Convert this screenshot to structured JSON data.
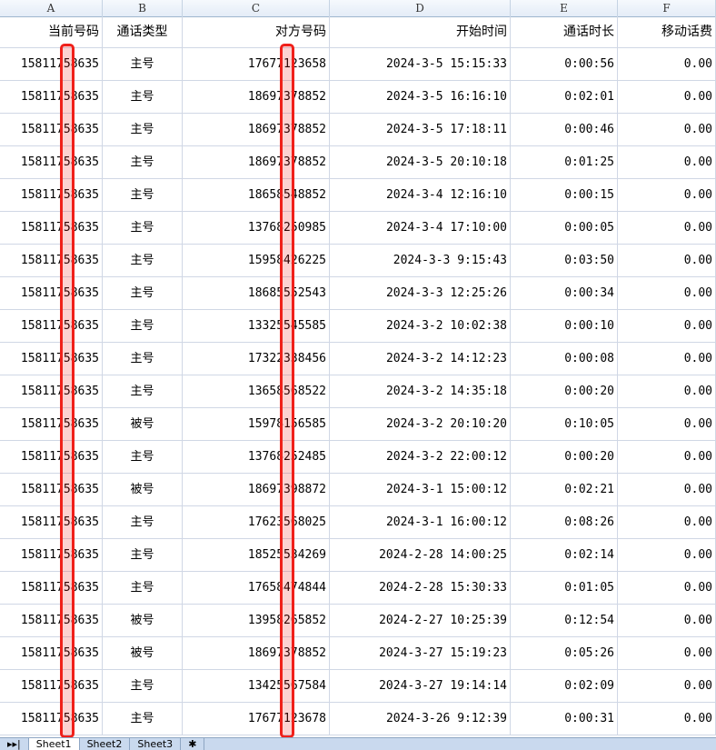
{
  "columns": [
    "A",
    "B",
    "C",
    "D",
    "E",
    "F"
  ],
  "headers": [
    "当前号码",
    "通话类型",
    "对方号码",
    "开始时间",
    "通话时长",
    "移动话费"
  ],
  "rows": [
    [
      "15811758635",
      "主号",
      "17677123658",
      "2024-3-5 15:15:33",
      "0:00:56",
      "0.00"
    ],
    [
      "15811758635",
      "主号",
      "18697378852",
      "2024-3-5 16:16:10",
      "0:02:01",
      "0.00"
    ],
    [
      "15811758635",
      "主号",
      "18697378852",
      "2024-3-5 17:18:11",
      "0:00:46",
      "0.00"
    ],
    [
      "15811758635",
      "主号",
      "18697378852",
      "2024-3-5 20:10:18",
      "0:01:25",
      "0.00"
    ],
    [
      "15811758635",
      "主号",
      "18658548852",
      "2024-3-4 12:16:10",
      "0:00:15",
      "0.00"
    ],
    [
      "15811758635",
      "主号",
      "13768250985",
      "2024-3-4 17:10:00",
      "0:00:05",
      "0.00"
    ],
    [
      "15811758635",
      "主号",
      "15958426225",
      "2024-3-3 9:15:43",
      "0:03:50",
      "0.00"
    ],
    [
      "15811758635",
      "主号",
      "18685552543",
      "2024-3-3 12:25:26",
      "0:00:34",
      "0.00"
    ],
    [
      "15811758635",
      "主号",
      "13325545585",
      "2024-3-2 10:02:38",
      "0:00:10",
      "0.00"
    ],
    [
      "15811758635",
      "主号",
      "17322338456",
      "2024-3-2 14:12:23",
      "0:00:08",
      "0.00"
    ],
    [
      "15811758635",
      "主号",
      "13658568522",
      "2024-3-2 14:35:18",
      "0:00:20",
      "0.00"
    ],
    [
      "15811758635",
      "被号",
      "15978156585",
      "2024-3-2 20:10:20",
      "0:10:05",
      "0.00"
    ],
    [
      "15811758635",
      "主号",
      "13768252485",
      "2024-3-2 22:00:12",
      "0:00:20",
      "0.00"
    ],
    [
      "15811758635",
      "被号",
      "18697398872",
      "2024-3-1 15:00:12",
      "0:02:21",
      "0.00"
    ],
    [
      "15811758635",
      "主号",
      "17623568025",
      "2024-3-1 16:00:12",
      "0:08:26",
      "0.00"
    ],
    [
      "15811758635",
      "主号",
      "18525534269",
      "2024-2-28 14:00:25",
      "0:02:14",
      "0.00"
    ],
    [
      "15811758635",
      "主号",
      "17658474844",
      "2024-2-28 15:30:33",
      "0:01:05",
      "0.00"
    ],
    [
      "15811758635",
      "被号",
      "13958265852",
      "2024-2-27 10:25:39",
      "0:12:54",
      "0.00"
    ],
    [
      "15811758635",
      "被号",
      "18697378852",
      "2024-3-27 15:19:23",
      "0:05:26",
      "0.00"
    ],
    [
      "15811758635",
      "主号",
      "13425567584",
      "2024-3-27 19:14:14",
      "0:02:09",
      "0.00"
    ],
    [
      "15811758635",
      "主号",
      "17677123678",
      "2024-3-26 9:12:39",
      "0:00:31",
      "0.00"
    ]
  ],
  "sheet_tabs": [
    "Sheet1",
    "Sheet2",
    "Sheet3"
  ],
  "redaction_color": "#f0201a"
}
